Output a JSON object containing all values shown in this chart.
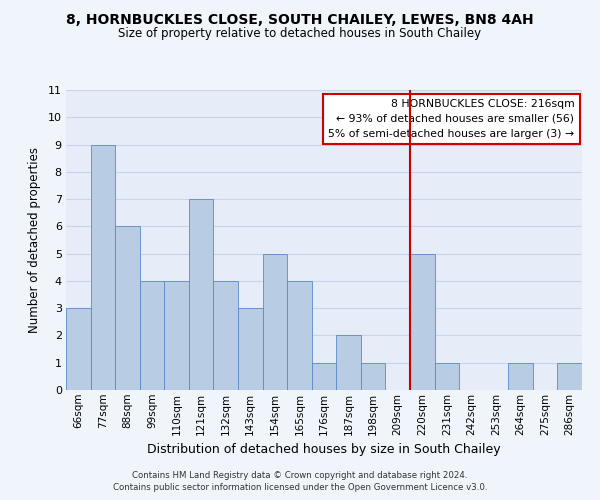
{
  "title": "8, HORNBUCKLES CLOSE, SOUTH CHAILEY, LEWES, BN8 4AH",
  "subtitle": "Size of property relative to detached houses in South Chailey",
  "xlabel": "Distribution of detached houses by size in South Chailey",
  "ylabel": "Number of detached properties",
  "bin_labels": [
    "66sqm",
    "77sqm",
    "88sqm",
    "99sqm",
    "110sqm",
    "121sqm",
    "132sqm",
    "143sqm",
    "154sqm",
    "165sqm",
    "176sqm",
    "187sqm",
    "198sqm",
    "209sqm",
    "220sqm",
    "231sqm",
    "242sqm",
    "253sqm",
    "264sqm",
    "275sqm",
    "286sqm"
  ],
  "bar_values": [
    3,
    9,
    6,
    4,
    4,
    7,
    4,
    3,
    5,
    4,
    1,
    2,
    1,
    0,
    5,
    1,
    0,
    0,
    1,
    0,
    1
  ],
  "bar_color": "#b8cce4",
  "bar_edgecolor": "#5a8ac6",
  "grid_color": "#c8d4e8",
  "vline_x": 13.5,
  "vline_color": "#cc0000",
  "ylim": [
    0,
    11
  ],
  "yticks": [
    0,
    1,
    2,
    3,
    4,
    5,
    6,
    7,
    8,
    9,
    10,
    11
  ],
  "annotation_lines": [
    "8 HORNBUCKLES CLOSE: 216sqm",
    "← 93% of detached houses are smaller (56)",
    "5% of semi-detached houses are larger (3) →"
  ],
  "footer_line1": "Contains HM Land Registry data © Crown copyright and database right 2024.",
  "footer_line2": "Contains public sector information licensed under the Open Government Licence v3.0.",
  "bg_color": "#f0f4fb",
  "plot_bg_color": "#e6ecf8"
}
